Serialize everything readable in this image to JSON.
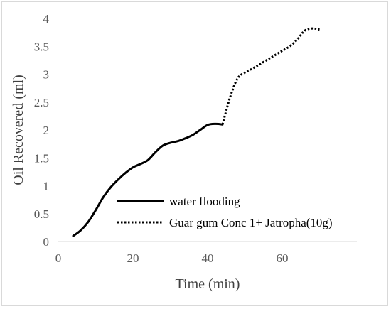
{
  "chart_data": {
    "type": "line",
    "xlabel": "Time (min)",
    "ylabel": "Oil Recovered (ml)",
    "xlim": [
      0,
      80
    ],
    "ylim": [
      0,
      4
    ],
    "x_ticks": [
      "0",
      "20",
      "40",
      "60"
    ],
    "y_ticks": [
      "0",
      "0.5",
      "1",
      "1.5",
      "2",
      "2.5",
      "3",
      "3.5",
      "4"
    ],
    "x_tick_values": [
      0,
      20,
      40,
      60
    ],
    "y_tick_values": [
      0,
      0.5,
      1,
      1.5,
      2,
      2.5,
      3,
      3.5,
      4
    ],
    "grid": false,
    "legend_position": "bottom-right",
    "series": [
      {
        "name": "water flooding",
        "style": "solid",
        "color": "#000000",
        "x": [
          4,
          6,
          8,
          10,
          12,
          14,
          16,
          18,
          20,
          22,
          24,
          26,
          28,
          30,
          32,
          34,
          36,
          38,
          40,
          42,
          44
        ],
        "y": [
          0.1,
          0.2,
          0.35,
          0.56,
          0.79,
          0.97,
          1.11,
          1.23,
          1.33,
          1.39,
          1.46,
          1.6,
          1.72,
          1.77,
          1.8,
          1.85,
          1.91,
          2.0,
          2.09,
          2.11,
          2.1
        ]
      },
      {
        "name": "Guar gum Conc 1+  Jatropha(10g)",
        "style": "dotted",
        "color": "#000000",
        "x": [
          44,
          46,
          48,
          50,
          52,
          54,
          56,
          58,
          60,
          62,
          64,
          66,
          68,
          70
        ],
        "y": [
          2.1,
          2.58,
          2.92,
          3.03,
          3.1,
          3.18,
          3.26,
          3.34,
          3.42,
          3.5,
          3.62,
          3.78,
          3.82,
          3.8
        ]
      }
    ]
  }
}
